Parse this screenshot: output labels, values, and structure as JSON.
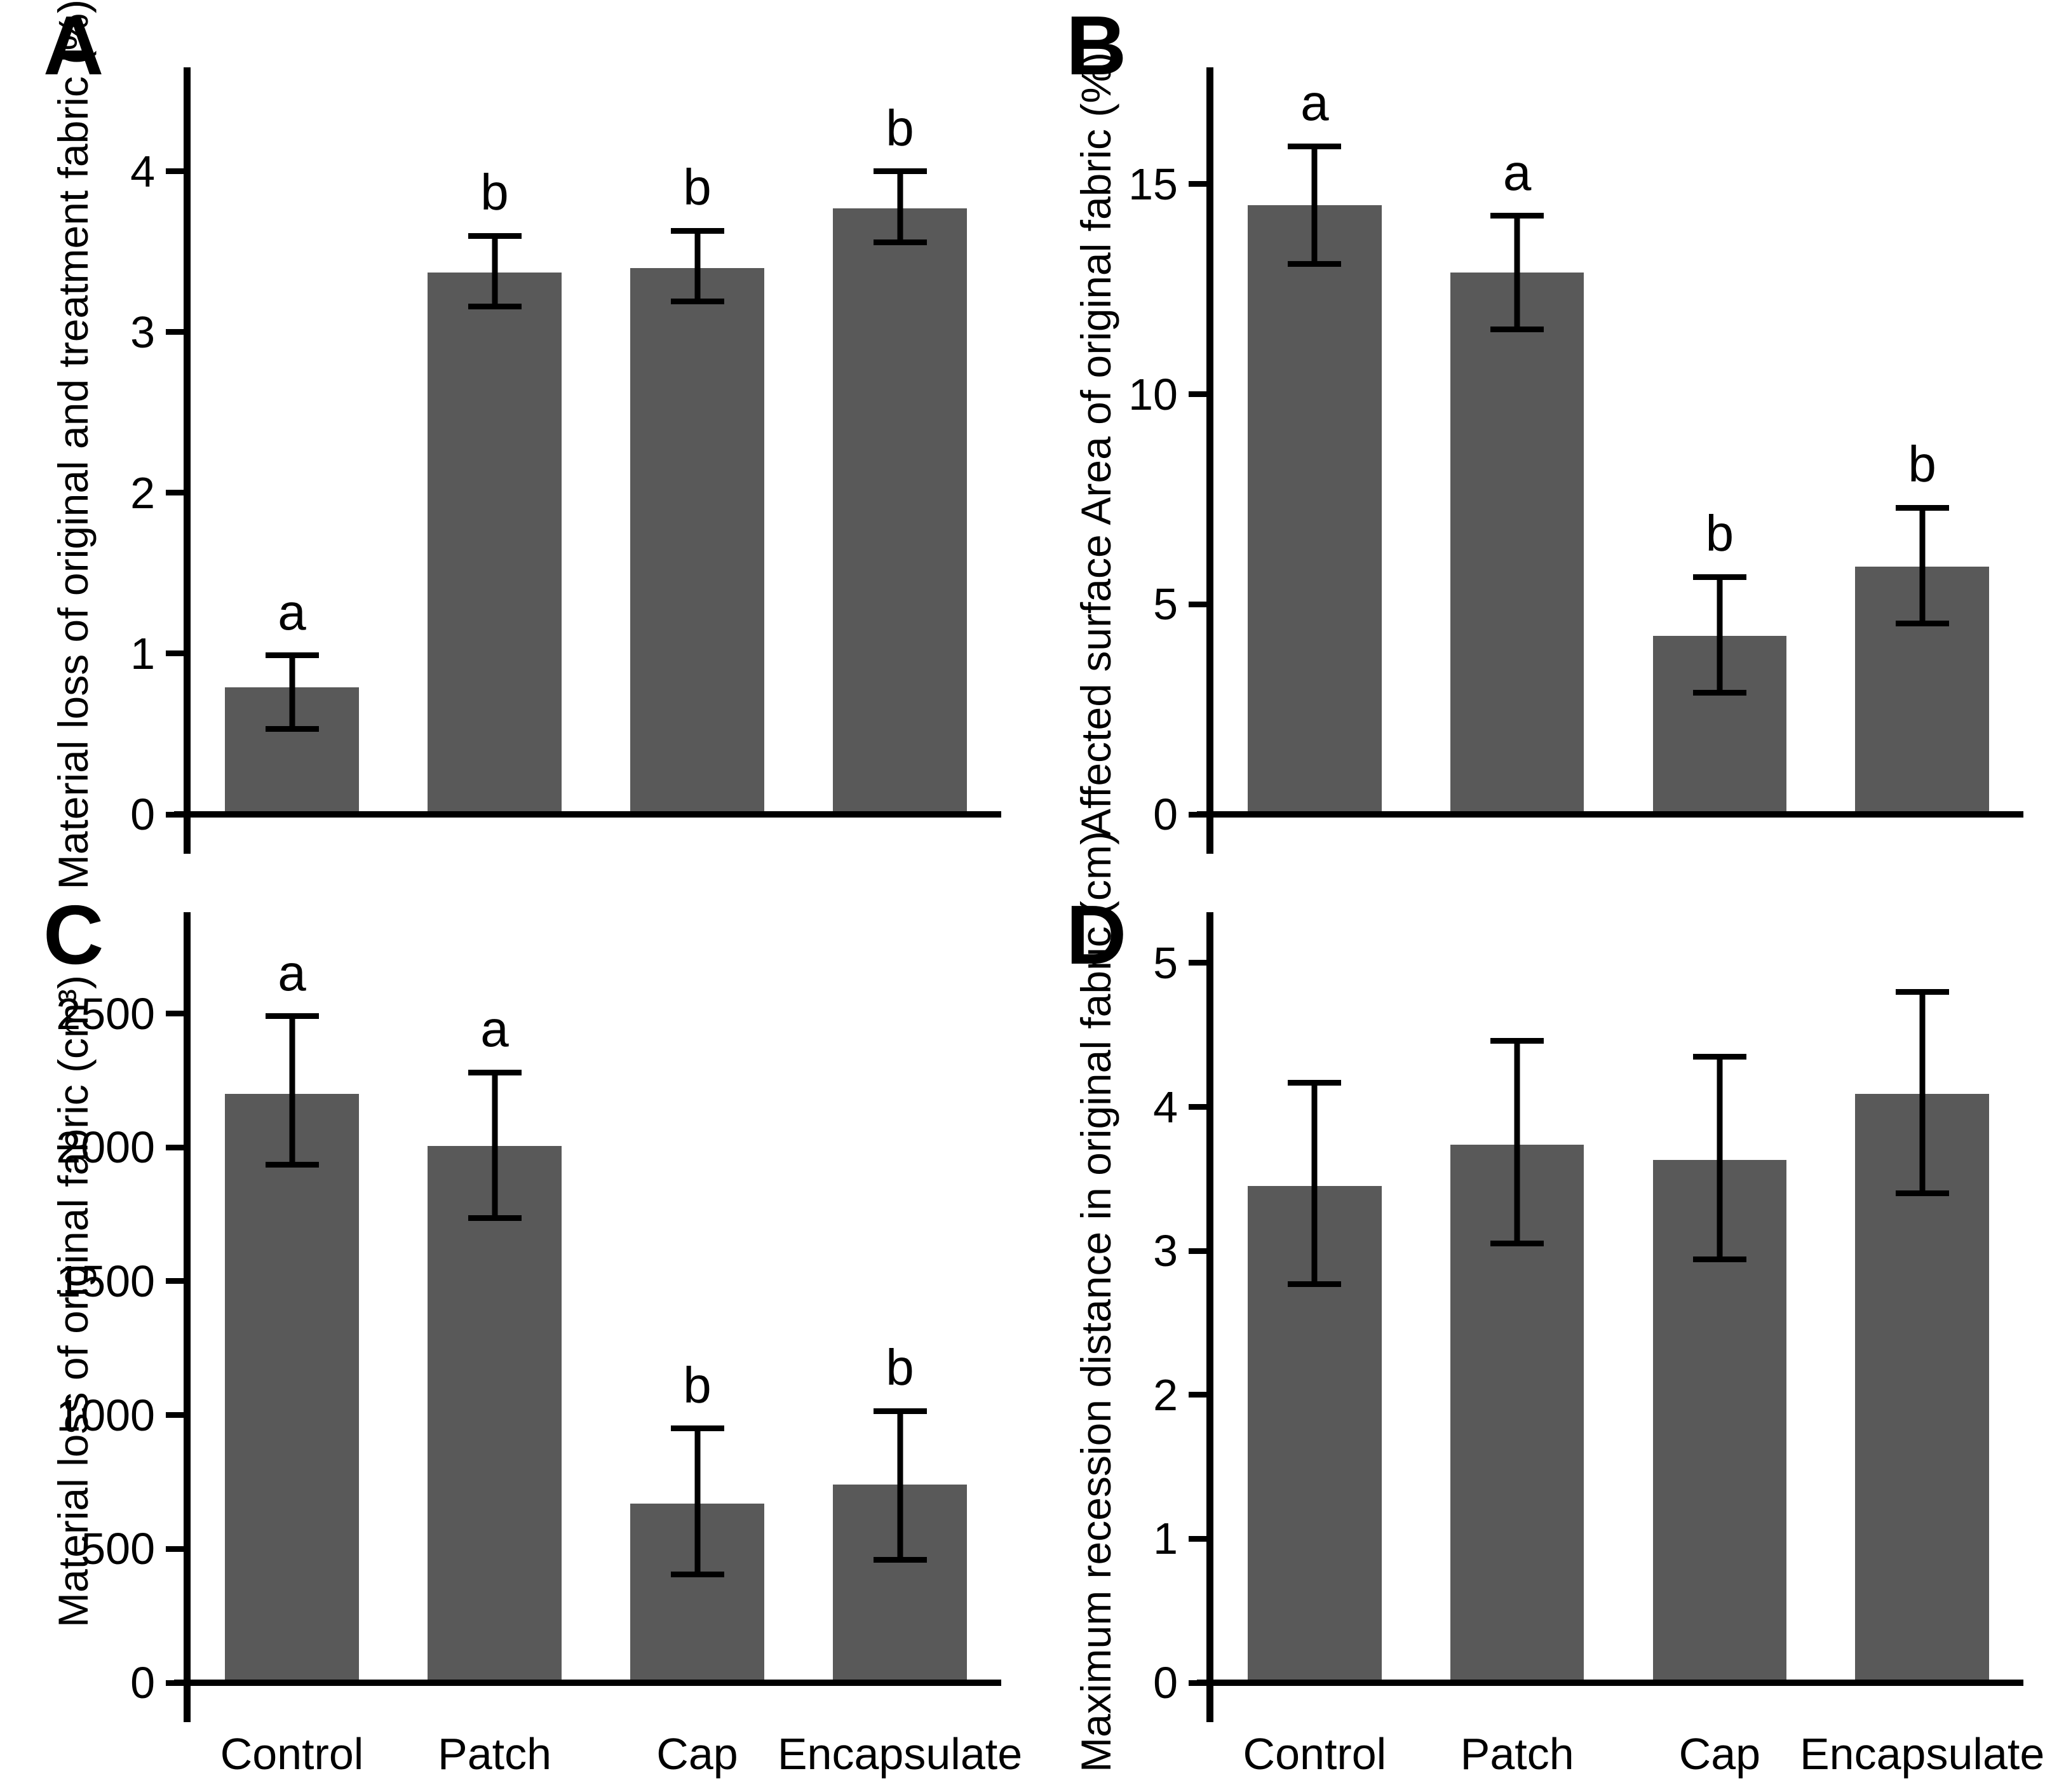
{
  "figure": {
    "background": "#ffffff",
    "bar_color": "#595959",
    "axis_color": "#000000",
    "categories": [
      "Control",
      "Patch",
      "Cap",
      "Encapsulate"
    ]
  },
  "chart_data": [
    {
      "type": "bar",
      "panel_label": "A",
      "title": "",
      "xlabel": "",
      "ylabel": "Material loss of original and treatment fabric (%)",
      "categories": [
        "Control",
        "Patch",
        "Cap",
        "Encapsulate"
      ],
      "values": [
        0.79,
        3.37,
        3.4,
        3.77
      ],
      "error_low": [
        0.53,
        3.16,
        3.19,
        3.56
      ],
      "error_high": [
        0.99,
        3.6,
        3.63,
        4.0
      ],
      "sig_letters": [
        "a",
        "b",
        "b",
        "b"
      ],
      "yticks": [
        0,
        1,
        2,
        3,
        4
      ],
      "ylim": [
        0,
        4.6
      ],
      "grid": false,
      "legend": false,
      "show_x_tick_labels": false
    },
    {
      "type": "bar",
      "panel_label": "B",
      "title": "",
      "xlabel": "",
      "ylabel": "Affected surface Area of original fabric (%)",
      "categories": [
        "Control",
        "Patch",
        "Cap",
        "Encapsulate"
      ],
      "values": [
        14.5,
        12.9,
        4.25,
        5.9
      ],
      "error_low": [
        13.1,
        11.55,
        2.9,
        4.55
      ],
      "error_high": [
        15.9,
        14.25,
        5.65,
        7.3
      ],
      "sig_letters": [
        "a",
        "a",
        "b",
        "b"
      ],
      "yticks": [
        0,
        5,
        10,
        15
      ],
      "ylim": [
        0,
        17.6
      ],
      "grid": false,
      "legend": false,
      "show_x_tick_labels": false
    },
    {
      "type": "bar",
      "panel_label": "C",
      "title": "",
      "xlabel": "",
      "ylabel": "Material loss of original fabric (cm³)",
      "categories": [
        "Control",
        "Patch",
        "Cap",
        "Encapsulate"
      ],
      "values": [
        2200,
        2005,
        670,
        740
      ],
      "error_low": [
        1935,
        1735,
        405,
        460
      ],
      "error_high": [
        2490,
        2280,
        950,
        1015
      ],
      "sig_letters": [
        "a",
        "a",
        "b",
        "b"
      ],
      "yticks": [
        0,
        500,
        1000,
        1500,
        2000,
        2500
      ],
      "ylim": [
        0,
        2850
      ],
      "grid": false,
      "legend": false,
      "show_x_tick_labels": true
    },
    {
      "type": "bar",
      "panel_label": "D",
      "title": "",
      "xlabel": "",
      "ylabel": "Maximum recession distance in original fabric (cm)",
      "categories": [
        "Control",
        "Patch",
        "Cap",
        "Encapsulate"
      ],
      "values": [
        3.45,
        3.74,
        3.63,
        4.09
      ],
      "error_low": [
        2.77,
        3.05,
        2.94,
        3.4
      ],
      "error_high": [
        4.17,
        4.46,
        4.35,
        4.8
      ],
      "sig_letters": [
        "",
        "",
        "",
        ""
      ],
      "yticks": [
        0,
        1,
        2,
        3,
        4,
        5
      ],
      "ylim": [
        0,
        5.3
      ],
      "grid": false,
      "legend": false,
      "show_x_tick_labels": true
    }
  ]
}
